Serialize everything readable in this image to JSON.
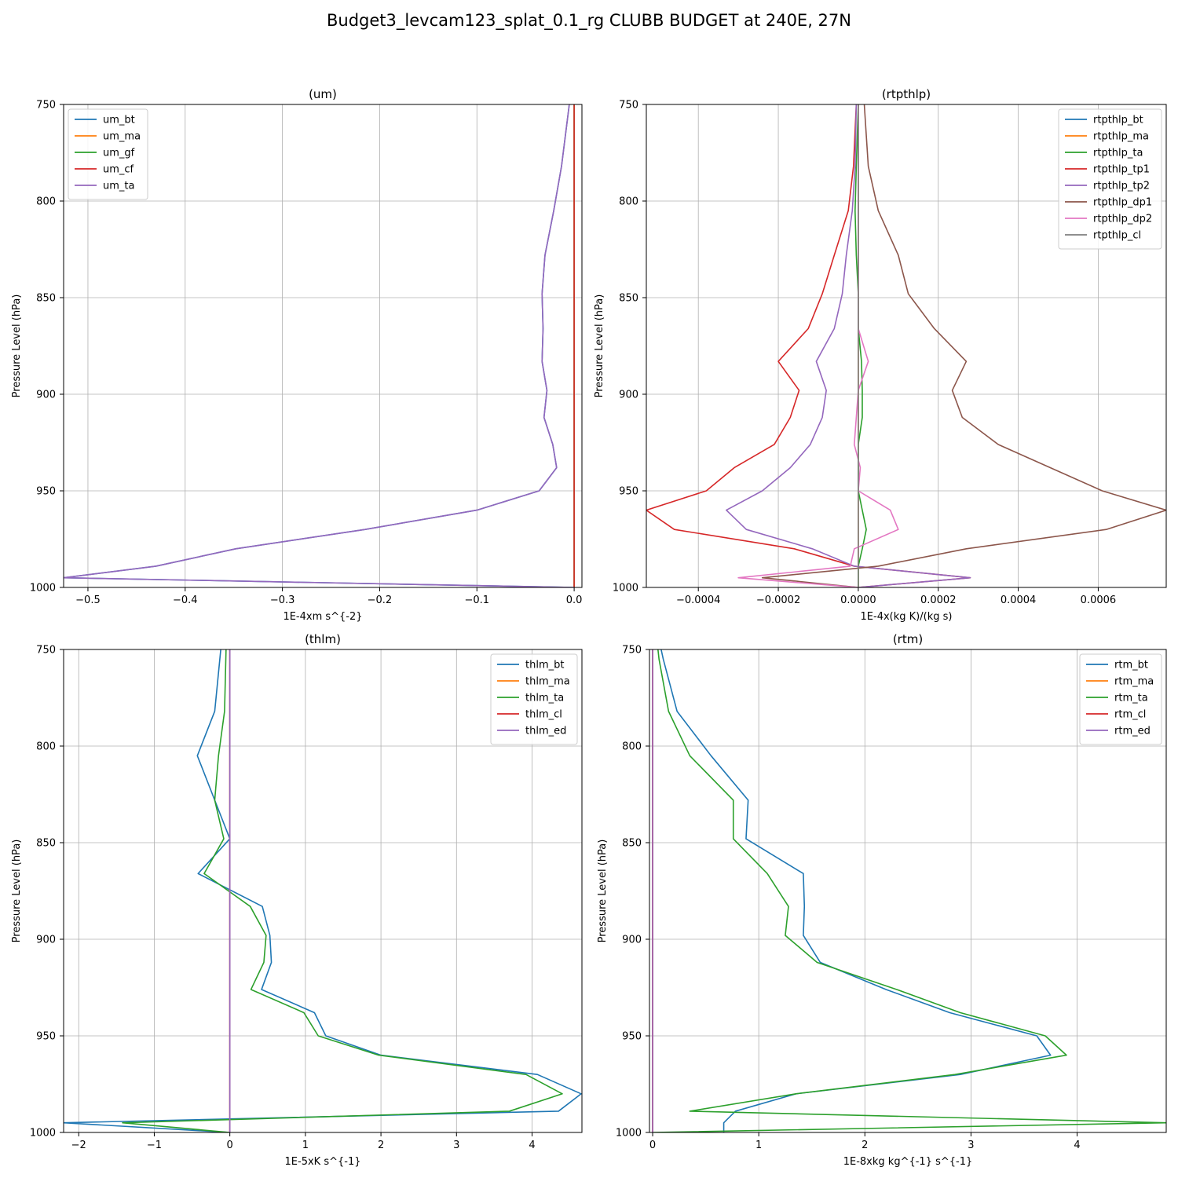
{
  "figure": {
    "suptitle": "Budget3_levcam123_splat_0.1_rg CLUBB BUDGET at 240E, 27N"
  },
  "chart_data": [
    {
      "type": "line",
      "title": "(um)",
      "xlabel": "1E-4xm s^{-2}",
      "ylabel": "Pressure Level (hPa)",
      "xlim": [
        -0.525,
        0.008
      ],
      "ylim": [
        1000,
        750
      ],
      "y_inverted": true,
      "xticks": [
        -0.5,
        -0.4,
        -0.3,
        -0.2,
        -0.1,
        0.0
      ],
      "xtick_labels": [
        "−0.5",
        "−0.4",
        "−0.3",
        "−0.2",
        "−0.1",
        "0.0"
      ],
      "yticks": [
        750,
        800,
        850,
        900,
        950,
        1000
      ],
      "grid": true,
      "legend": "upper left",
      "y": [
        750,
        782,
        805,
        828,
        848,
        866,
        883,
        898,
        912,
        926,
        938,
        950,
        960,
        970,
        980,
        989,
        995,
        1000
      ],
      "series": [
        {
          "name": "um_bt",
          "color": "#1f77b4",
          "values": [
            -0.005,
            -0.013,
            -0.021,
            -0.03,
            -0.033,
            -0.032,
            -0.033,
            -0.028,
            -0.031,
            -0.022,
            -0.018,
            -0.036,
            -0.1,
            -0.215,
            -0.348,
            -0.43,
            -0.525,
            0.0
          ]
        },
        {
          "name": "um_ma",
          "color": "#ff7f0e",
          "values": [
            0,
            0,
            0,
            0,
            0,
            0,
            0,
            0,
            0,
            0,
            0,
            0,
            0,
            0,
            0,
            0,
            0,
            0
          ]
        },
        {
          "name": "um_gf",
          "color": "#2ca02c",
          "values": [
            0,
            0,
            0,
            0,
            0,
            0,
            0,
            0,
            0,
            0,
            0,
            0,
            0,
            0,
            0,
            0,
            0,
            0
          ]
        },
        {
          "name": "um_cf",
          "color": "#d62728",
          "values": [
            0,
            0,
            0,
            0,
            0,
            0,
            0,
            0,
            0,
            0,
            0,
            0,
            0,
            0,
            0,
            0,
            0,
            0
          ]
        },
        {
          "name": "um_ta",
          "color": "#9467bd",
          "values": [
            -0.005,
            -0.013,
            -0.021,
            -0.03,
            -0.033,
            -0.032,
            -0.033,
            -0.028,
            -0.031,
            -0.022,
            -0.018,
            -0.036,
            -0.1,
            -0.215,
            -0.348,
            -0.43,
            -0.525,
            0.0
          ]
        }
      ]
    },
    {
      "type": "line",
      "title": "(rtpthlp)",
      "xlabel": "1E-4x(kg K)/(kg s)",
      "ylabel": "Pressure Level (hPa)",
      "xlim": [
        -0.00053,
        0.00077
      ],
      "ylim": [
        1000,
        750
      ],
      "y_inverted": true,
      "xticks": [
        -0.0004,
        -0.0002,
        0.0,
        0.0002,
        0.0004,
        0.0006
      ],
      "xtick_labels": [
        "−0.0004",
        "−0.0002",
        "0.0000",
        "0.0002",
        "0.0004",
        "0.0006"
      ],
      "yticks": [
        750,
        800,
        850,
        900,
        950,
        1000
      ],
      "grid": true,
      "legend": "upper right",
      "y": [
        750,
        782,
        805,
        828,
        848,
        866,
        883,
        898,
        912,
        926,
        938,
        950,
        960,
        970,
        980,
        989,
        995,
        1000
      ],
      "series": [
        {
          "name": "rtpthlp_bt",
          "color": "#1f77b4",
          "values": [
            0,
            0,
            0,
            0,
            0,
            0,
            0,
            0,
            0,
            0,
            0,
            0,
            0,
            0,
            0,
            0,
            0,
            0
          ]
        },
        {
          "name": "rtpthlp_ma",
          "color": "#ff7f0e",
          "values": [
            0,
            0,
            0,
            0,
            0,
            0,
            0,
            0,
            0,
            0,
            0,
            0,
            0,
            0,
            0,
            0,
            0,
            0
          ]
        },
        {
          "name": "rtpthlp_ta",
          "color": "#2ca02c",
          "values": [
            0.0,
            -5e-06,
            -8e-06,
            -5e-06,
            0.0,
            0.0,
            8e-06,
            1e-05,
            1e-05,
            0.0,
            0.0,
            0.0,
            1e-05,
            2e-05,
            1e-05,
            0.0,
            0.0,
            0.0
          ]
        },
        {
          "name": "rtpthlp_tp1",
          "color": "#d62728",
          "values": [
            -5e-06,
            -1.2e-05,
            -2.5e-05,
            -6e-05,
            -9e-05,
            -0.000125,
            -0.0002,
            -0.000148,
            -0.00017,
            -0.00021,
            -0.00031,
            -0.00038,
            -0.00053,
            -0.00046,
            -0.00016,
            -1e-05,
            0.00028,
            0.0
          ]
        },
        {
          "name": "rtpthlp_tp2",
          "color": "#9467bd",
          "values": [
            -5e-06,
            -8e-06,
            -1.5e-05,
            -3e-05,
            -4e-05,
            -6e-05,
            -0.000105,
            -8e-05,
            -9e-05,
            -0.00012,
            -0.00017,
            -0.00024,
            -0.00033,
            -0.00028,
            -0.000115,
            -1e-05,
            0.00028,
            0.0
          ]
        },
        {
          "name": "rtpthlp_dp1",
          "color": "#8c564b",
          "values": [
            1.5e-05,
            2.5e-05,
            5e-05,
            0.0001,
            0.000125,
            0.00019,
            0.00027,
            0.000235,
            0.00026,
            0.00035,
            0.00048,
            0.00061,
            0.00077,
            0.00062,
            0.00027,
            5e-05,
            -0.00024,
            0.0
          ]
        },
        {
          "name": "rtpthlp_dp2",
          "color": "#e377c2",
          "values": [
            0.0,
            0.0,
            0.0,
            0.0,
            0.0,
            0.0,
            2.5e-05,
            0.0,
            -5e-06,
            -1e-05,
            5e-06,
            0.0,
            8e-05,
            0.0001,
            -1e-05,
            -2e-05,
            -0.0003,
            0.0
          ]
        },
        {
          "name": "rtpthlp_cl",
          "color": "#7f7f7f",
          "values": [
            0,
            0,
            0,
            0,
            0,
            0,
            0,
            0,
            0,
            0,
            0,
            0,
            0,
            0,
            0,
            0,
            0,
            0
          ]
        }
      ]
    },
    {
      "type": "line",
      "title": "(thlm)",
      "xlabel": "1E-5xK s^{-1}",
      "ylabel": "Pressure Level (hPa)",
      "xlim": [
        -2.2,
        4.66
      ],
      "ylim": [
        1000,
        750
      ],
      "y_inverted": true,
      "xticks": [
        -2,
        -1,
        0,
        1,
        2,
        3,
        4
      ],
      "xtick_labels": [
        "−2",
        "−1",
        "0",
        "1",
        "2",
        "3",
        "4"
      ],
      "yticks": [
        750,
        800,
        850,
        900,
        950,
        1000
      ],
      "grid": true,
      "legend": "upper right",
      "y": [
        750,
        782,
        805,
        828,
        848,
        866,
        883,
        898,
        912,
        926,
        938,
        950,
        960,
        970,
        980,
        989,
        995,
        1000
      ],
      "series": [
        {
          "name": "thlm_bt",
          "color": "#1f77b4",
          "values": [
            -0.12,
            -0.2,
            -0.43,
            -0.2,
            0.0,
            -0.42,
            0.43,
            0.53,
            0.55,
            0.42,
            1.12,
            1.27,
            2.0,
            4.07,
            4.65,
            4.35,
            -2.2,
            0.0
          ]
        },
        {
          "name": "thlm_ma",
          "color": "#ff7f0e",
          "values": [
            0,
            0,
            0,
            0,
            0,
            0,
            0,
            0,
            0,
            0,
            0,
            0,
            0,
            0,
            0,
            0,
            0,
            0
          ]
        },
        {
          "name": "thlm_ta",
          "color": "#2ca02c",
          "values": [
            -0.05,
            -0.07,
            -0.15,
            -0.2,
            -0.08,
            -0.34,
            0.27,
            0.48,
            0.45,
            0.28,
            0.98,
            1.17,
            1.97,
            3.92,
            4.4,
            3.7,
            -1.42,
            0.0
          ]
        },
        {
          "name": "thlm_cl",
          "color": "#d62728",
          "values": [
            0,
            0,
            0,
            0,
            0,
            0,
            0,
            0,
            0,
            0,
            0,
            0,
            0,
            0,
            0,
            0,
            0,
            0
          ]
        },
        {
          "name": "thlm_ed",
          "color": "#9467bd",
          "values": [
            0,
            0,
            0,
            0,
            0,
            0,
            0,
            0,
            0,
            0,
            0,
            0,
            0,
            0,
            0,
            0,
            0,
            0
          ]
        }
      ]
    },
    {
      "type": "line",
      "title": "(rtm)",
      "xlabel": "1E-8xkg kg^{-1} s^{-1}",
      "ylabel": "Pressure Level (hPa)",
      "xlim": [
        -0.03,
        4.84
      ],
      "ylim": [
        1000,
        750
      ],
      "y_inverted": true,
      "xticks": [
        0,
        1,
        2,
        3,
        4
      ],
      "xtick_labels": [
        "0",
        "1",
        "2",
        "3",
        "4"
      ],
      "yticks": [
        750,
        800,
        850,
        900,
        950,
        1000
      ],
      "grid": true,
      "legend": "upper right",
      "y": [
        750,
        755,
        782,
        805,
        828,
        848,
        866,
        883,
        898,
        912,
        926,
        938,
        950,
        960,
        970,
        980,
        989,
        995,
        1000
      ],
      "series": [
        {
          "name": "rtm_bt",
          "color": "#1f77b4",
          "values": [
            0.08,
            0.1,
            0.23,
            0.55,
            0.9,
            0.88,
            1.42,
            1.43,
            1.42,
            1.58,
            2.2,
            2.8,
            3.62,
            3.75,
            2.9,
            1.35,
            0.78,
            0.67,
            0.67
          ]
        },
        {
          "name": "rtm_ma",
          "color": "#ff7f0e",
          "values": [
            0,
            0,
            0,
            0,
            0,
            0,
            0,
            0,
            0,
            0,
            0,
            0,
            0,
            0,
            0,
            0,
            0,
            0,
            0
          ]
        },
        {
          "name": "rtm_ta",
          "color": "#2ca02c",
          "values": [
            0.05,
            0.06,
            0.15,
            0.35,
            0.76,
            0.76,
            1.08,
            1.28,
            1.25,
            1.55,
            2.3,
            2.9,
            3.7,
            3.9,
            2.85,
            1.35,
            0.35,
            4.84,
            0.0
          ]
        },
        {
          "name": "rtm_cl",
          "color": "#d62728",
          "values": [
            0,
            0,
            0,
            0,
            0,
            0,
            0,
            0,
            0,
            0,
            0,
            0,
            0,
            0,
            0,
            0,
            0,
            0,
            0
          ]
        },
        {
          "name": "rtm_ed",
          "color": "#9467bd",
          "values": [
            0,
            0,
            0,
            0,
            0,
            0,
            0,
            0,
            0,
            0,
            0,
            0,
            0,
            0,
            0,
            0,
            0,
            0,
            0
          ]
        }
      ]
    }
  ]
}
